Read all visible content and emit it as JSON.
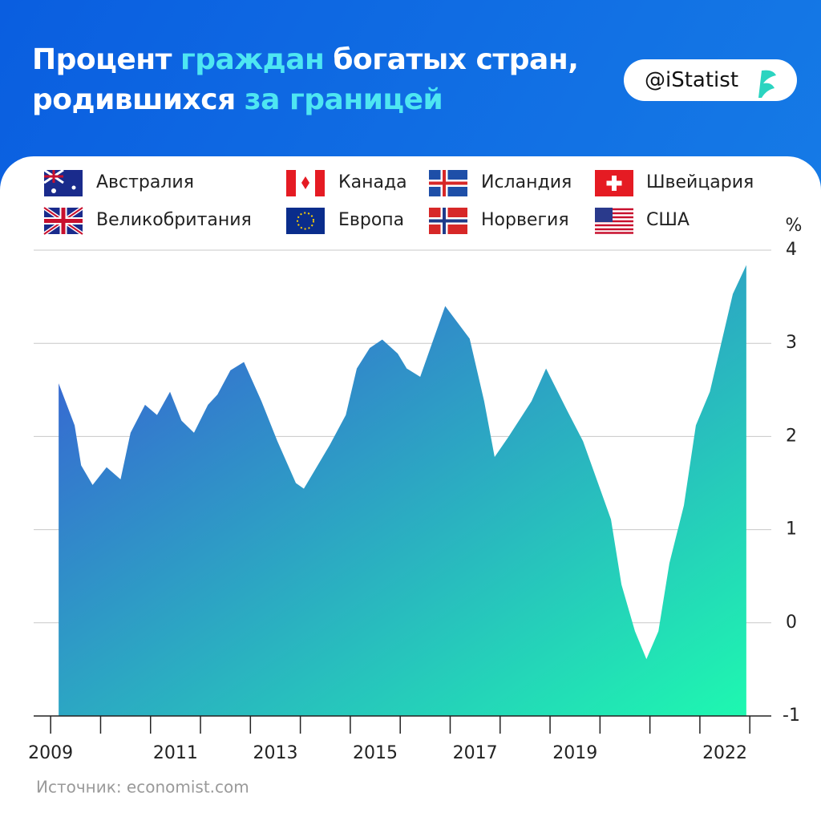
{
  "chart_data": {
    "type": "area",
    "title": [
      "Процент",
      "граждан",
      "богатых стран,",
      "родившихся",
      "за границей"
    ],
    "title_highlight": [
      false,
      true,
      false,
      false,
      true
    ],
    "brand": "@iStatist",
    "legend": [
      "Австралия",
      "Канада",
      "Исландия",
      "Швейцария",
      "Великобритания",
      "Европа",
      "Норвегия",
      "США"
    ],
    "y_unit": "%",
    "source": "Источник: economist.com",
    "x": [
      2009.16,
      2009.48,
      2009.61,
      2009.84,
      2010.12,
      2010.4,
      2010.6,
      2010.89,
      2011.13,
      2011.39,
      2011.62,
      2011.87,
      2012.15,
      2012.34,
      2012.6,
      2012.87,
      2013.22,
      2013.54,
      2013.91,
      2014.07,
      2014.59,
      2014.91,
      2015.13,
      2015.39,
      2015.64,
      2015.95,
      2016.13,
      2016.4,
      2016.9,
      2017.39,
      2017.68,
      2017.89,
      2018.16,
      2018.63,
      2018.92,
      2019.35,
      2019.66,
      2020.22,
      2020.43,
      2020.7,
      2020.93,
      2021.17,
      2021.39,
      2021.68,
      2021.92,
      2022.2,
      2022.66,
      2022.93
    ],
    "values": [
      2.57,
      2.12,
      1.69,
      1.48,
      1.67,
      1.54,
      2.04,
      2.34,
      2.23,
      2.48,
      2.17,
      2.04,
      2.34,
      2.45,
      2.71,
      2.8,
      2.38,
      1.95,
      1.5,
      1.44,
      1.91,
      2.23,
      2.73,
      2.95,
      3.04,
      2.89,
      2.73,
      2.64,
      3.4,
      3.05,
      2.38,
      1.78,
      1.99,
      2.38,
      2.73,
      2.27,
      1.95,
      1.11,
      0.41,
      -0.09,
      -0.39,
      -0.09,
      0.64,
      1.26,
      2.12,
      2.48,
      3.53,
      3.84
    ],
    "colors": [
      "#3a55d6",
      "#1ef8b0"
    ],
    "xlim": [
      2008.66,
      2023.43
    ],
    "xticks": [
      {
        "value": 2009,
        "label": "2009"
      },
      {
        "value": 2011.5,
        "label": "2011"
      },
      {
        "value": 2013.5,
        "label": "2013"
      },
      {
        "value": 2015.5,
        "label": "2015"
      },
      {
        "value": 2017.5,
        "label": "2017"
      },
      {
        "value": 2019.5,
        "label": "2019"
      },
      {
        "value": 2022.5,
        "label": "2022"
      }
    ],
    "xminor_ticks": [
      2009,
      2010,
      2011,
      2012,
      2013,
      2014,
      2015,
      2016,
      2017,
      2018,
      2019,
      2020,
      2021,
      2022,
      2023
    ],
    "ylim": [
      -1,
      4
    ],
    "yticks": [
      -1,
      0,
      1,
      2,
      3,
      4
    ],
    "grid": true
  }
}
